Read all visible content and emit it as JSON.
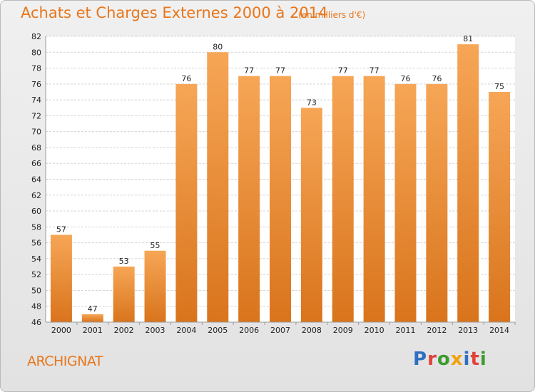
{
  "header": {
    "title": "Achats et Charges Externes 2000 à 2014",
    "subtitle": "(en milliers d'€)"
  },
  "commune": "ARCHIGNAT",
  "brand": {
    "letters": [
      "P",
      "r",
      "o",
      "x",
      "i",
      "t",
      "i"
    ]
  },
  "colors": {
    "accent": "#e8761b",
    "bar_top": "#f6a656",
    "bar_bottom": "#d9741c"
  },
  "chart_data": {
    "type": "bar",
    "title": "Achats et Charges Externes 2000 à 2014",
    "subtitle": "(en milliers d'€)",
    "xlabel": "",
    "ylabel": "",
    "categories": [
      "2000",
      "2001",
      "2002",
      "2003",
      "2004",
      "2005",
      "2006",
      "2007",
      "2008",
      "2009",
      "2010",
      "2011",
      "2012",
      "2013",
      "2014"
    ],
    "values": [
      57,
      47,
      53,
      55,
      76,
      80,
      77,
      77,
      73,
      77,
      77,
      76,
      76,
      81,
      75
    ],
    "data_labels": [
      "57",
      "47",
      "53",
      "55",
      "76",
      "80",
      "77",
      "77",
      "73",
      "77",
      "77",
      "76",
      "76",
      "81",
      "75"
    ],
    "ylim": [
      46,
      82
    ],
    "yticks": [
      "46",
      "48",
      "50",
      "52",
      "54",
      "56",
      "58",
      "60",
      "62",
      "64",
      "66",
      "68",
      "70",
      "72",
      "74",
      "76",
      "78",
      "80",
      "82"
    ],
    "grid": true
  }
}
